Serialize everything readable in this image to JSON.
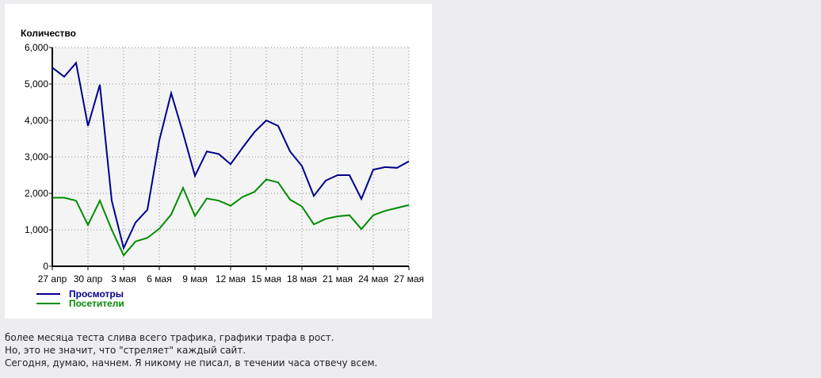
{
  "chart_data": {
    "type": "line",
    "ylabel": "Количество",
    "ylim": [
      0,
      6000
    ],
    "yticks": [
      "0",
      "1,000",
      "2,000",
      "3,000",
      "4,000",
      "5,000",
      "6,000"
    ],
    "xticks": [
      "27 апр",
      "30 апр",
      "3 мая",
      "6 мая",
      "9 мая",
      "12 мая",
      "15 мая",
      "18 мая",
      "21 мая",
      "24 мая",
      "27 мая"
    ],
    "grid": true,
    "legend": "bottom-left",
    "series": [
      {
        "name": "Просмотры",
        "color": "#00008b",
        "values": [
          5450,
          5200,
          5580,
          3850,
          4980,
          1800,
          500,
          1200,
          1550,
          3450,
          4750,
          3650,
          2480,
          3150,
          3080,
          2800,
          3250,
          3680,
          4000,
          3850,
          3150,
          2750,
          1930,
          2350,
          2500,
          2500,
          1850,
          2650,
          2720,
          2700,
          2880
        ]
      },
      {
        "name": "Посетители",
        "color": "#008c00",
        "values": [
          1880,
          1880,
          1800,
          1130,
          1800,
          1000,
          300,
          680,
          780,
          1030,
          1420,
          2150,
          1380,
          1860,
          1800,
          1660,
          1900,
          2040,
          2380,
          2300,
          1830,
          1640,
          1150,
          1300,
          1370,
          1400,
          1020,
          1400,
          1520,
          1600,
          1680
        ]
      }
    ]
  },
  "text": [
    "более месяца теста слива всего трафика, графики трафа в рост.",
    "Но, это не значит, что \"стреляет\" каждый сайт.",
    "Сегодня, думаю, начнем. Я никому не писал, в течении часа отвечу всем."
  ]
}
